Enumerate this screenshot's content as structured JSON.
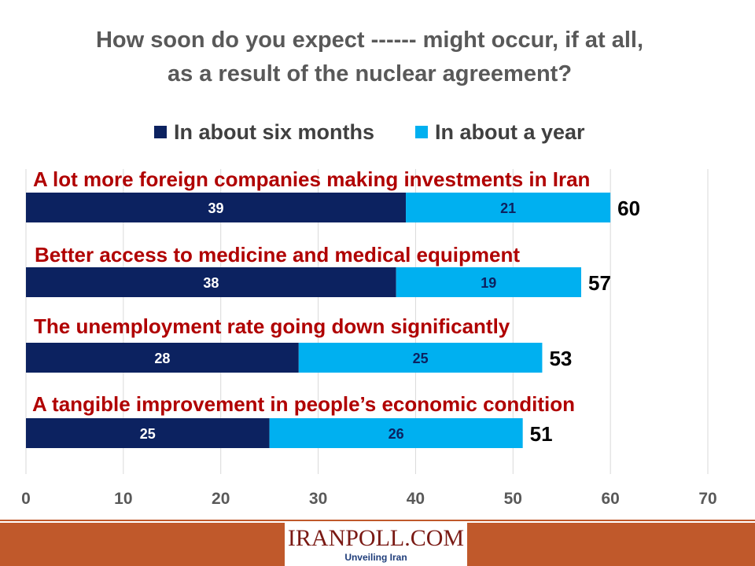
{
  "chart_data": {
    "type": "bar",
    "orientation": "horizontal",
    "stacked": true,
    "title": "How soon do you expect ------ might occur, if at all, as a result of the nuclear agreement?",
    "categories": [
      "A lot more foreign companies making investments in Iran",
      "Better access to medicine and medical equipment",
      "The unemployment rate going down significantly",
      "A tangible improvement in people’s economic condition"
    ],
    "series": [
      {
        "name": "In about six months",
        "color": "#0c2260",
        "values": [
          39,
          38,
          28,
          25
        ]
      },
      {
        "name": "In about a year",
        "color": "#00b0f0",
        "values": [
          21,
          19,
          25,
          26
        ]
      }
    ],
    "totals": [
      60,
      57,
      53,
      51
    ],
    "xlim": [
      0,
      70
    ],
    "xticks": [
      "0",
      "10",
      "20",
      "30",
      "40",
      "50",
      "60",
      "70"
    ],
    "grid": "vertical",
    "legend": "top"
  },
  "footer": {
    "logo_text": "IRANPOLL.COM",
    "tagline": "Unveiling Iran"
  }
}
